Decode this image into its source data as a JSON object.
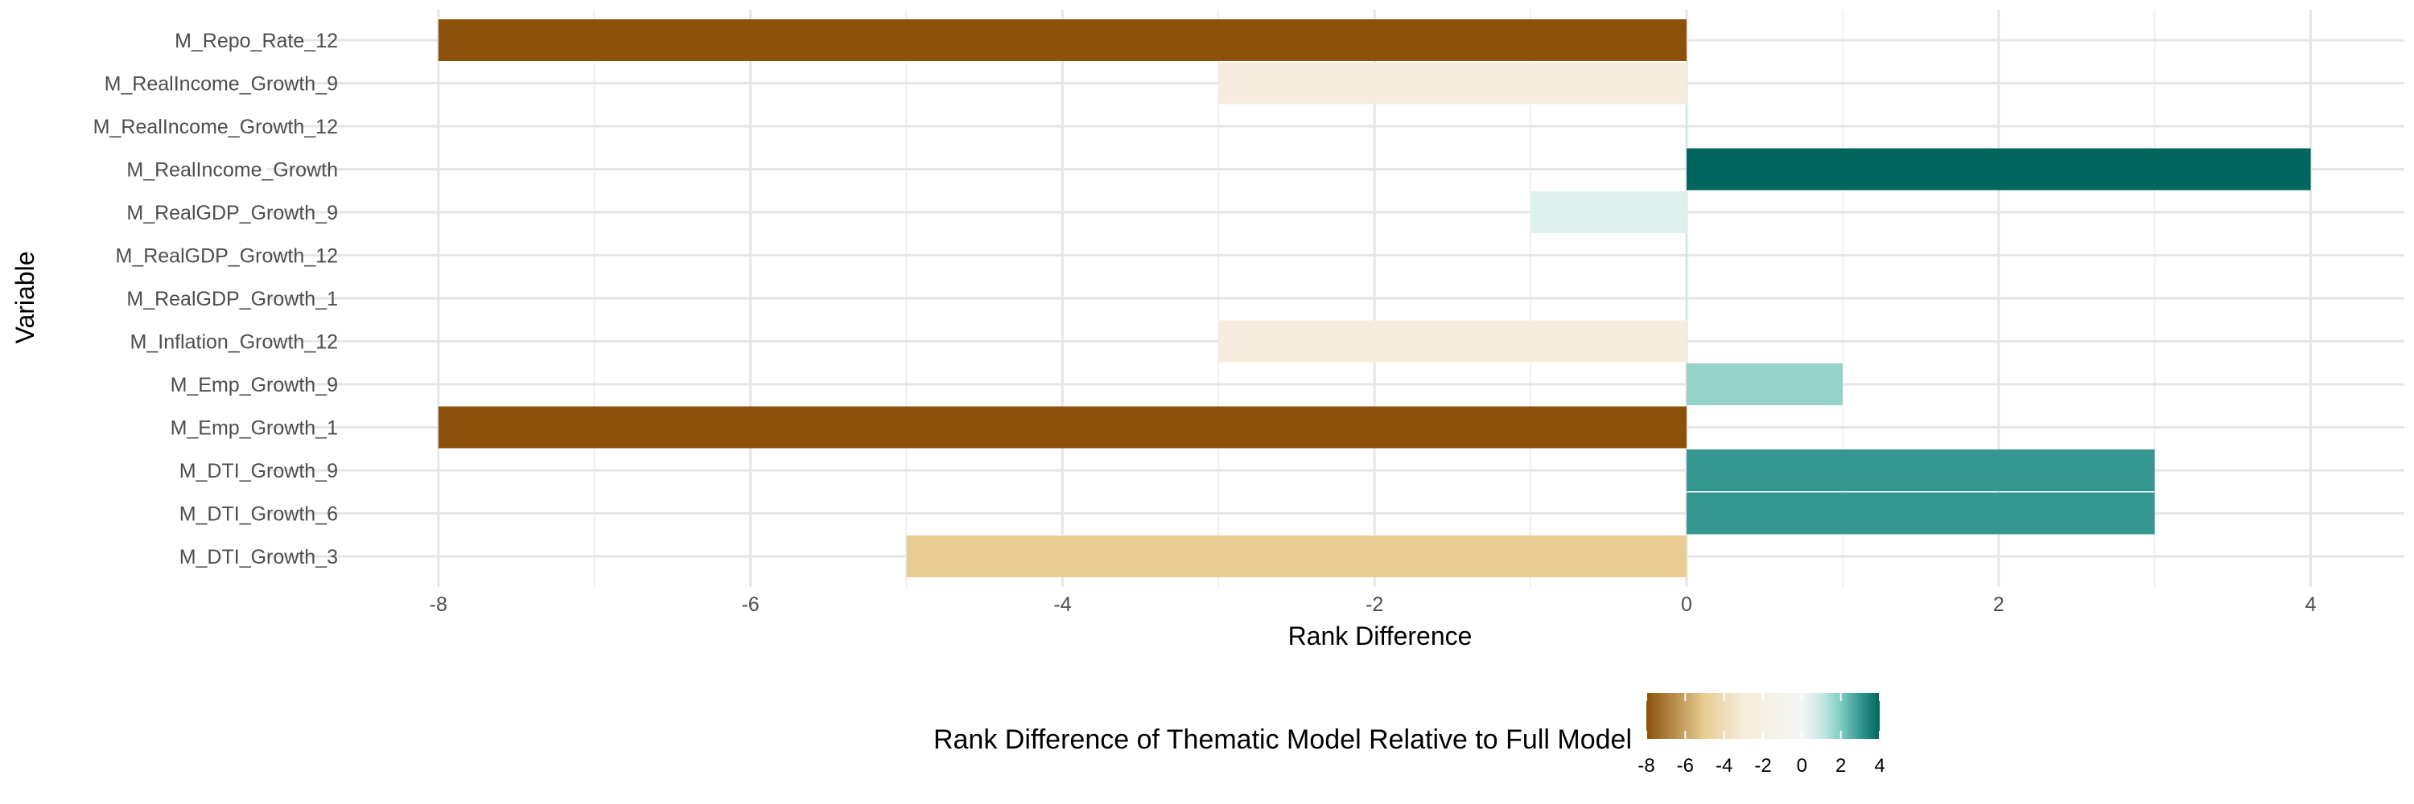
{
  "chart_data": {
    "type": "bar",
    "orientation": "horizontal",
    "xlabel": "Rank Difference",
    "ylabel": "Variable",
    "xlim": [
      -9.1,
      4.6
    ],
    "x_ticks": [
      -8,
      -6,
      -4,
      -2,
      0,
      2,
      4
    ],
    "x_tick_labels": [
      "-8",
      "-6",
      "-4",
      "-2",
      "0",
      "2",
      "4"
    ],
    "grid": true,
    "categories": [
      "M_Repo_Rate_12",
      "M_RealIncome_Growth_9",
      "M_RealIncome_Growth_12",
      "M_RealIncome_Growth",
      "M_RealGDP_Growth_9",
      "M_RealGDP_Growth_12",
      "M_RealGDP_Growth_1",
      "M_Inflation_Growth_12",
      "M_Emp_Growth_9",
      "M_Emp_Growth_1",
      "M_DTI_Growth_9",
      "M_DTI_Growth_6",
      "M_DTI_Growth_3"
    ],
    "values": [
      -8,
      -3,
      0,
      4,
      -1,
      0,
      0,
      -3,
      1,
      -8,
      3,
      3,
      -5
    ],
    "legend": {
      "title": "Rank Difference of Thematic Model Relative to Full Model",
      "position": "bottom",
      "labels": [
        "-8",
        "-6",
        "-4",
        "-2",
        "0",
        "2",
        "4"
      ],
      "values": [
        -8,
        -6,
        -4,
        -2,
        0,
        2,
        4
      ],
      "range": [
        -8,
        4
      ]
    },
    "color_scale": {
      "stops": [
        {
          "value": -8,
          "color": "#8c510a"
        },
        {
          "value": -5,
          "color": "#e8cd93"
        },
        {
          "value": -3,
          "color": "#f5ecdb"
        },
        {
          "value": 0,
          "color": "#f4f6f6"
        },
        {
          "value": 1,
          "color": "#c7e8e4"
        },
        {
          "value": 2,
          "color": "#80cdc1"
        },
        {
          "value": 3,
          "color": "#35978f"
        },
        {
          "value": 4,
          "color": "#01665e"
        }
      ],
      "bar_colors": {
        "-8": "#8c510a",
        "-5": "#e8cd93",
        "-3": "#f5ecdb",
        "-1": "#ddf0ee",
        "0": "#c7e8e4",
        "1": "#95d2c9",
        "3": "#35978f",
        "4": "#01665e"
      }
    }
  }
}
